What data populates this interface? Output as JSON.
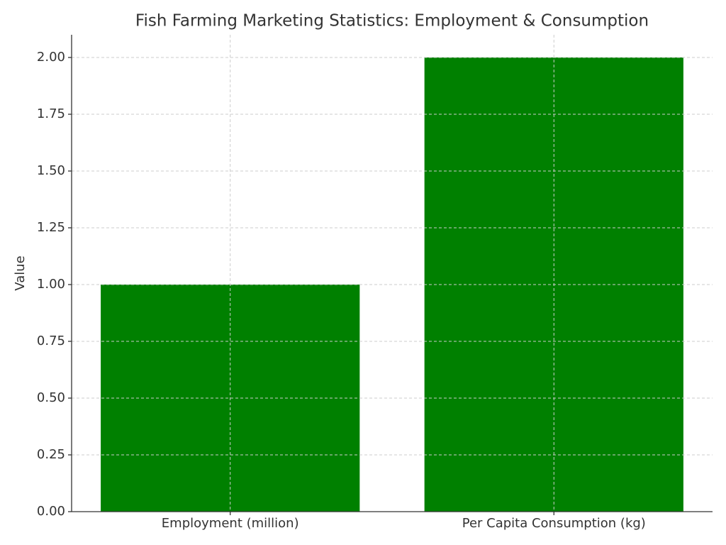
{
  "chart_data": {
    "type": "bar",
    "title": "Fish Farming Marketing Statistics: Employment & Consumption",
    "y_label": "Value",
    "categories": [
      "Employment (million)",
      "Per Capita Consumption (kg)"
    ],
    "values": [
      1,
      2
    ],
    "color": "#008000",
    "ylim": [
      0,
      2.1
    ],
    "yticks": [
      {
        "value": 0,
        "label": "0.00"
      },
      {
        "value": 0.25,
        "label": "0.25"
      },
      {
        "value": 0.5,
        "label": "0.50"
      },
      {
        "value": 0.75,
        "label": "0.75"
      },
      {
        "value": 1,
        "label": "1.00"
      },
      {
        "value": 1.25,
        "label": "1.25"
      },
      {
        "value": 1.5,
        "label": "1.50"
      },
      {
        "value": 1.75,
        "label": "1.75"
      },
      {
        "value": 2,
        "label": "2.00"
      }
    ],
    "grid": true
  }
}
